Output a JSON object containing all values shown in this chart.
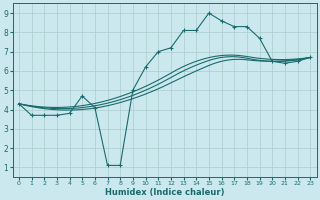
{
  "xlabel": "Humidex (Indice chaleur)",
  "bg_color": "#cce8ef",
  "grid_color": "#aacccc",
  "line_color": "#1a6b6b",
  "xlim": [
    -0.5,
    23.5
  ],
  "ylim": [
    0.5,
    9.5
  ],
  "xticks": [
    0,
    1,
    2,
    3,
    4,
    5,
    6,
    7,
    8,
    9,
    10,
    11,
    12,
    13,
    14,
    15,
    16,
    17,
    18,
    19,
    20,
    21,
    22,
    23
  ],
  "yticks": [
    1,
    2,
    3,
    4,
    5,
    6,
    7,
    8,
    9
  ],
  "main_line": {
    "x": [
      0,
      1,
      2,
      3,
      4,
      5,
      6,
      7,
      8,
      9,
      10,
      11,
      12,
      13,
      14,
      15,
      16,
      17,
      18,
      19,
      20,
      21,
      22,
      23
    ],
    "y": [
      4.3,
      3.7,
      3.7,
      3.7,
      3.8,
      4.7,
      4.1,
      1.1,
      1.1,
      5.0,
      6.2,
      7.0,
      7.2,
      8.1,
      8.1,
      9.0,
      8.6,
      8.3,
      8.3,
      7.7,
      6.5,
      6.4,
      6.5,
      6.7
    ]
  },
  "trend_lines": [
    {
      "x": [
        0,
        23
      ],
      "y": [
        4.3,
        6.7
      ]
    },
    {
      "x": [
        0,
        23
      ],
      "y": [
        4.3,
        6.7
      ]
    },
    {
      "x": [
        0,
        23
      ],
      "y": [
        4.3,
        6.7
      ]
    }
  ],
  "smooth_lines": [
    {
      "x": [
        0,
        5,
        10,
        14,
        16,
        20,
        23
      ],
      "y": [
        4.3,
        4.2,
        5.2,
        6.5,
        6.8,
        6.6,
        6.7
      ]
    },
    {
      "x": [
        0,
        5,
        10,
        14,
        16,
        20,
        23
      ],
      "y": [
        4.3,
        4.1,
        5.0,
        6.3,
        6.7,
        6.5,
        6.7
      ]
    },
    {
      "x": [
        0,
        5,
        10,
        14,
        16,
        20,
        23
      ],
      "y": [
        4.3,
        4.0,
        4.8,
        6.0,
        6.5,
        6.5,
        6.7
      ]
    }
  ]
}
